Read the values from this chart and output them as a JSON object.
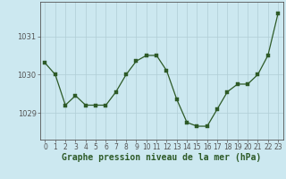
{
  "x": [
    0,
    1,
    2,
    3,
    4,
    5,
    6,
    7,
    8,
    9,
    10,
    11,
    12,
    13,
    14,
    15,
    16,
    17,
    18,
    19,
    20,
    21,
    22,
    23
  ],
  "y": [
    1030.3,
    1030.0,
    1029.2,
    1029.45,
    1029.2,
    1029.2,
    1029.2,
    1029.55,
    1030.0,
    1030.35,
    1030.5,
    1030.5,
    1030.1,
    1029.35,
    1028.75,
    1028.65,
    1028.65,
    1029.1,
    1029.55,
    1029.75,
    1029.75,
    1030.0,
    1030.5,
    1031.6
  ],
  "line_color": "#2d5a27",
  "marker": "s",
  "marker_size": 2.5,
  "background_color": "#cce8f0",
  "grid_color": "#b0cdd5",
  "axis_color": "#555555",
  "xlabel": "Graphe pression niveau de la mer (hPa)",
  "xlabel_fontsize": 7,
  "xlabel_color": "#2d5a27",
  "yticks": [
    1029,
    1030,
    1031
  ],
  "ylim": [
    1028.3,
    1031.9
  ],
  "xlim": [
    -0.5,
    23.5
  ],
  "xticks": [
    0,
    1,
    2,
    3,
    4,
    5,
    6,
    7,
    8,
    9,
    10,
    11,
    12,
    13,
    14,
    15,
    16,
    17,
    18,
    19,
    20,
    21,
    22,
    23
  ],
  "tick_fontsize": 5.5,
  "ytick_fontsize": 6
}
